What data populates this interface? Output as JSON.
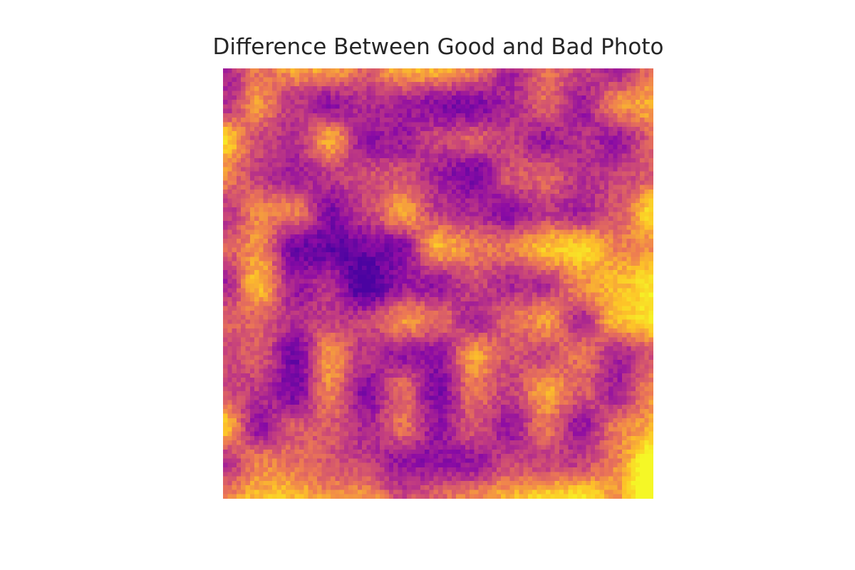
{
  "chart_data": {
    "type": "heatmap",
    "title": "Difference Between Good and Bad Photo",
    "xlabel": "",
    "ylabel": "",
    "axes_visible": false,
    "grid": false,
    "colormap": "plasma",
    "colors": {
      "low": "#4b03a1",
      "mid_low": "#8d0ca4",
      "mid": "#c33d80",
      "mid_high": "#ed7953",
      "high": "#fdc328",
      "peak": "#f5f726"
    },
    "grid_resolution": [
      96,
      96
    ],
    "features": [
      {
        "region": "bottom-right corner",
        "level": "high"
      },
      {
        "region": "right edge middle",
        "level": "high"
      },
      {
        "region": "center-left",
        "level": "low"
      },
      {
        "region": "top-center",
        "level": "low"
      },
      {
        "region": "left edge",
        "level": "medium-high"
      }
    ]
  }
}
